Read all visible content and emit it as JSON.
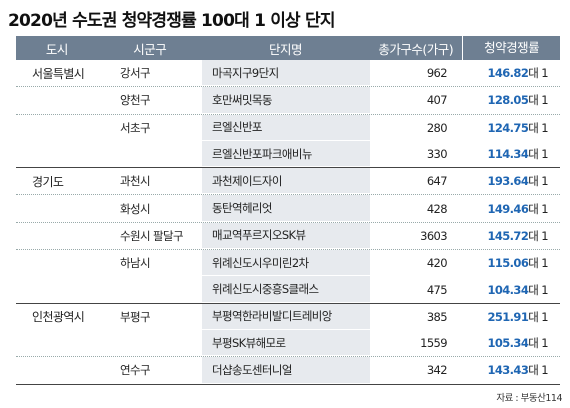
{
  "title": "2020년 수도권 청약경쟁률 100대 1 이상 단지",
  "headers": [
    "도시",
    "시군구",
    "단지명",
    "총가구수(가구)",
    "청약경쟁률"
  ],
  "rate_unit": "대 1",
  "regions": [
    {
      "city": "서울특별시",
      "rows": [
        {
          "district": "강서구",
          "complex": "마곡지구9단지",
          "households": "962",
          "rate": "146.82"
        },
        {
          "district": "양천구",
          "complex": "호만써밋목동",
          "households": "407",
          "rate": "128.05"
        },
        {
          "district": "서초구",
          "complex": "르엘신반포",
          "households": "280",
          "rate": "124.75"
        },
        {
          "district": "",
          "complex": "르엘신반포파크애비뉴",
          "households": "330",
          "rate": "114.34"
        }
      ]
    },
    {
      "city": "경기도",
      "rows": [
        {
          "district": "과천시",
          "complex": "과천제이드자이",
          "households": "647",
          "rate": "193.64"
        },
        {
          "district": "화성시",
          "complex": "동탄역헤리엇",
          "households": "428",
          "rate": "149.46"
        },
        {
          "district": "수원시 팔달구",
          "complex": "매교역푸르지오SK뷰",
          "households": "3603",
          "rate": "145.72"
        },
        {
          "district": "하남시",
          "complex": "위례신도시우미린2차",
          "households": "420",
          "rate": "115.06"
        },
        {
          "district": "",
          "complex": "위례신도시중흥S클래스",
          "households": "475",
          "rate": "104.34"
        }
      ]
    },
    {
      "city": "인천광역시",
      "rows": [
        {
          "district": "부평구",
          "complex": "부평역한라비발디트레비앙",
          "households": "385",
          "rate": "251.91"
        },
        {
          "district": "",
          "complex": "부평SK뷰해모로",
          "households": "1559",
          "rate": "105.34"
        },
        {
          "district": "연수구",
          "complex": "더샵송도센터니얼",
          "households": "342",
          "rate": "143.43"
        }
      ]
    }
  ],
  "source": "자료 : 부동산114"
}
